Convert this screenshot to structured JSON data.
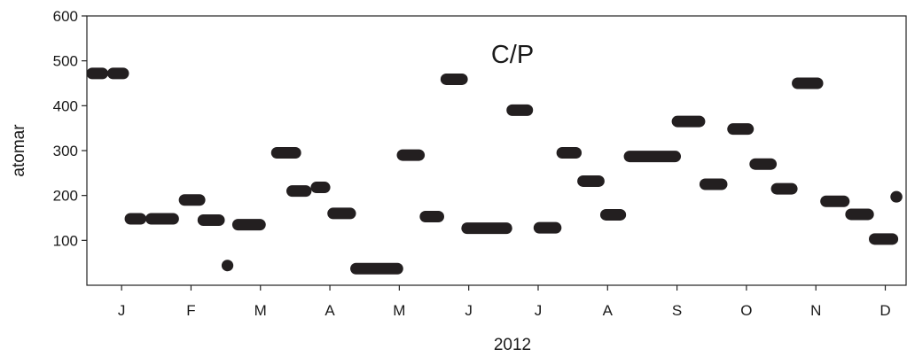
{
  "chart_data": {
    "type": "scatter",
    "title": "",
    "annotation": "C/P",
    "xlabel": "2012",
    "ylabel": "atomar",
    "ylim": [
      0,
      600
    ],
    "yticks": [
      100,
      200,
      300,
      400,
      500,
      600
    ],
    "x_unit": "month index within 2012 (January = 0, tick = start of month)",
    "xlim": [
      -0.5,
      11.3
    ],
    "x_tick_positions": [
      0,
      1,
      2,
      3,
      4,
      5,
      6,
      7,
      8,
      9,
      10,
      11
    ],
    "x_tick_labels": [
      "J",
      "F",
      "M",
      "A",
      "M",
      "J",
      "J",
      "A",
      "S",
      "O",
      "N",
      "D"
    ],
    "grid": false,
    "marker_color": "#231f20",
    "segments": [
      {
        "x_start": -0.5,
        "x_end": -0.2,
        "y": 472
      },
      {
        "x_start": -0.2,
        "x_end": 0.1,
        "y": 472
      },
      {
        "x_start": 0.05,
        "x_end": 0.35,
        "y": 148
      },
      {
        "x_start": 0.35,
        "x_end": 0.82,
        "y": 148
      },
      {
        "x_start": 0.83,
        "x_end": 1.2,
        "y": 190
      },
      {
        "x_start": 1.1,
        "x_end": 1.48,
        "y": 145
      },
      {
        "x_start": 1.45,
        "x_end": 1.6,
        "y": 44
      },
      {
        "x_start": 1.6,
        "x_end": 2.07,
        "y": 135
      },
      {
        "x_start": 2.16,
        "x_end": 2.58,
        "y": 295
      },
      {
        "x_start": 2.38,
        "x_end": 2.73,
        "y": 210
      },
      {
        "x_start": 2.73,
        "x_end": 3.0,
        "y": 218
      },
      {
        "x_start": 2.97,
        "x_end": 3.37,
        "y": 160
      },
      {
        "x_start": 3.3,
        "x_end": 4.05,
        "y": 37
      },
      {
        "x_start": 3.97,
        "x_end": 4.36,
        "y": 290
      },
      {
        "x_start": 4.3,
        "x_end": 4.64,
        "y": 153
      },
      {
        "x_start": 4.6,
        "x_end": 4.98,
        "y": 459
      },
      {
        "x_start": 4.9,
        "x_end": 5.62,
        "y": 127
      },
      {
        "x_start": 5.55,
        "x_end": 5.92,
        "y": 390
      },
      {
        "x_start": 5.94,
        "x_end": 6.33,
        "y": 128
      },
      {
        "x_start": 6.27,
        "x_end": 6.62,
        "y": 295
      },
      {
        "x_start": 6.57,
        "x_end": 6.95,
        "y": 232
      },
      {
        "x_start": 6.9,
        "x_end": 7.26,
        "y": 157
      },
      {
        "x_start": 7.24,
        "x_end": 8.05,
        "y": 287
      },
      {
        "x_start": 7.93,
        "x_end": 8.4,
        "y": 365
      },
      {
        "x_start": 8.33,
        "x_end": 8.72,
        "y": 225
      },
      {
        "x_start": 8.73,
        "x_end": 9.1,
        "y": 348
      },
      {
        "x_start": 9.05,
        "x_end": 9.43,
        "y": 270
      },
      {
        "x_start": 9.36,
        "x_end": 9.73,
        "y": 215
      },
      {
        "x_start": 9.66,
        "x_end": 10.1,
        "y": 450
      },
      {
        "x_start": 10.07,
        "x_end": 10.48,
        "y": 187
      },
      {
        "x_start": 10.43,
        "x_end": 10.83,
        "y": 158
      },
      {
        "x_start": 10.77,
        "x_end": 11.18,
        "y": 103
      },
      {
        "x_start": 11.08,
        "x_end": 11.24,
        "y": 197
      }
    ]
  }
}
